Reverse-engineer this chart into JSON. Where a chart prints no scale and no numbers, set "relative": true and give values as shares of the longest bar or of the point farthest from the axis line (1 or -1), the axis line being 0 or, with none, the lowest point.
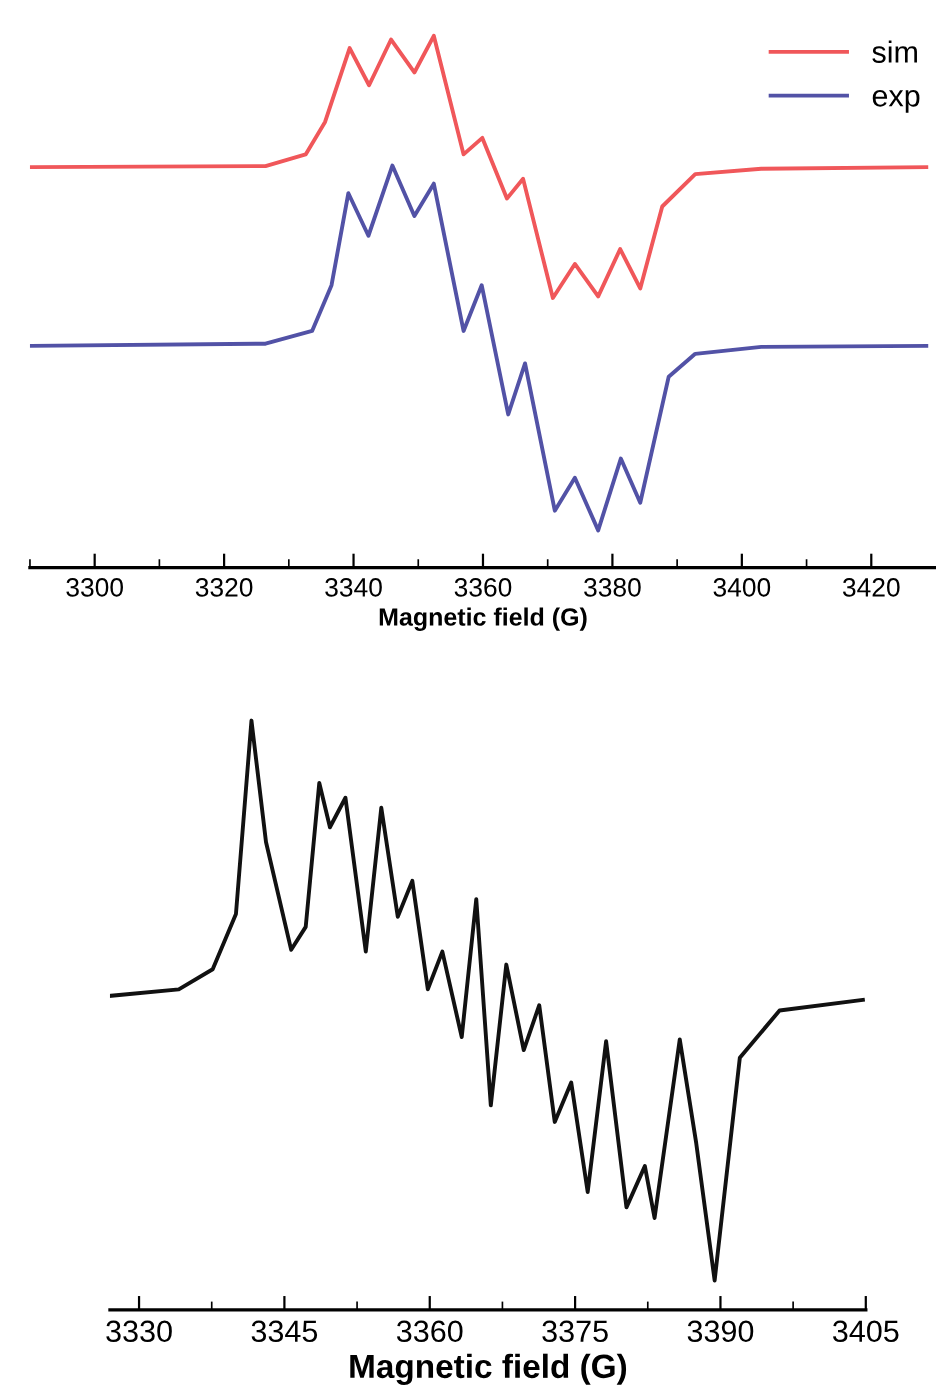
{
  "chart_data": [
    {
      "type": "line",
      "relative": true,
      "xlabel": "Magnetic field (G)",
      "xlim": [
        3290,
        3430
      ],
      "xticks": [
        {
          "value": 3290,
          "label": null
        },
        3300,
        {
          "value": 3310,
          "label": null
        },
        3320,
        {
          "value": 3330,
          "label": null
        },
        3340,
        {
          "value": 3350,
          "label": null
        },
        3360,
        {
          "value": 3370,
          "label": null
        },
        3380,
        {
          "value": 3390,
          "label": null
        },
        3400,
        {
          "value": 3410,
          "label": null
        },
        3420
      ],
      "legend": "top right",
      "series": [
        {
          "name": "sim",
          "color": "#f0575a",
          "x": [
            3290.2,
            3326.4,
            3332.6,
            3335.6,
            3339.4,
            3342.4,
            3345.8,
            3349.4,
            3352.4,
            3357.0,
            3359.9,
            3363.7,
            3366.2,
            3370.8,
            3374.2,
            3377.8,
            3381.2,
            3384.3,
            3387.7,
            3392.8,
            3403,
            3428.5
          ],
          "values": [
            0.753,
            0.755,
            0.777,
            0.838,
            0.977,
            0.907,
            0.993,
            0.931,
            1.0,
            0.777,
            0.808,
            0.694,
            0.731,
            0.507,
            0.571,
            0.51,
            0.599,
            0.525,
            0.679,
            0.74,
            0.75,
            0.753
          ]
        },
        {
          "name": "exp",
          "color": "#5252a6",
          "x": [
            3290.2,
            3326.4,
            3333.6,
            3336.6,
            3339.2,
            3342.3,
            3346.0,
            3349.4,
            3352.4,
            3357.0,
            3359.8,
            3363.9,
            3366.5,
            3371.1,
            3374.2,
            3377.8,
            3381.3,
            3384.3,
            3388.7,
            3392.8,
            3403,
            3428.5
          ],
          "values": [
            0.417,
            0.421,
            0.445,
            0.531,
            0.704,
            0.624,
            0.756,
            0.661,
            0.722,
            0.445,
            0.531,
            0.288,
            0.384,
            0.107,
            0.169,
            0.07,
            0.205,
            0.122,
            0.359,
            0.402,
            0.415,
            0.417
          ]
        }
      ]
    },
    {
      "type": "line",
      "relative": true,
      "xlabel": "Magnetic field (G)",
      "xlim": [
        3327,
        3405
      ],
      "xticks": [
        3330,
        {
          "value": 3337.5,
          "label": null
        },
        3345,
        {
          "value": 3352.5,
          "label": null
        },
        3360,
        {
          "value": 3367.5,
          "label": null
        },
        3375,
        {
          "value": 3382.5,
          "label": null
        },
        3390,
        {
          "value": 3397.5,
          "label": null
        },
        3405
      ],
      "series": [
        {
          "color": "#111111",
          "x": [
            3327.1,
            3334.1,
            3337.6,
            3340.0,
            3341.6,
            3343.1,
            3345.7,
            3347.2,
            3348.6,
            3349.7,
            3351.3,
            3353.4,
            3355.0,
            3356.7,
            3358.2,
            3359.8,
            3361.3,
            3363.3,
            3364.8,
            3366.3,
            3367.9,
            3369.7,
            3371.3,
            3372.9,
            3374.6,
            3376.3,
            3378.2,
            3380.3,
            3382.2,
            3383.2,
            3385.8,
            3387.5,
            3389.4,
            3392.0,
            3396.1,
            3404.7
          ],
          "values": [
            0.533,
            0.544,
            0.578,
            0.672,
            1.0,
            0.794,
            0.611,
            0.65,
            0.894,
            0.819,
            0.869,
            0.608,
            0.852,
            0.667,
            0.728,
            0.544,
            0.608,
            0.463,
            0.697,
            0.347,
            0.586,
            0.441,
            0.517,
            0.319,
            0.386,
            0.2,
            0.456,
            0.174,
            0.244,
            0.156,
            0.459,
            0.283,
            0.05,
            0.428,
            0.508,
            0.526
          ]
        }
      ]
    }
  ]
}
